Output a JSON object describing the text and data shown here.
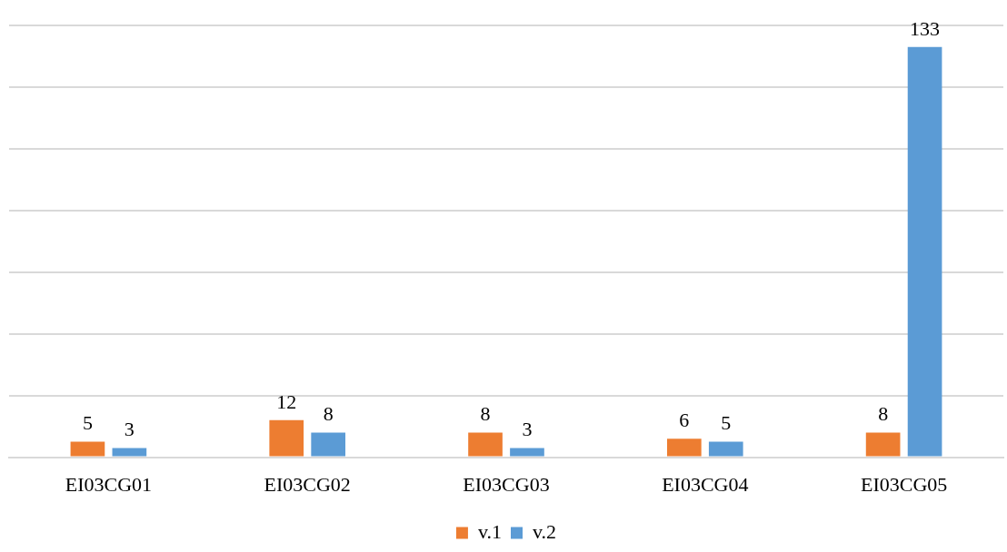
{
  "chart_data": {
    "type": "bar",
    "categories": [
      "EI03CG01",
      "EI03CG02",
      "EI03CG03",
      "EI03CG04",
      "EI03CG05"
    ],
    "series": [
      {
        "name": "v.1",
        "color": "#ed7d31",
        "values": [
          5,
          12,
          8,
          6,
          8
        ]
      },
      {
        "name": "v.2",
        "color": "#5b9bd5",
        "values": [
          3,
          8,
          3,
          5,
          133
        ]
      }
    ],
    "ylim": [
      0,
      140
    ],
    "yticks": [
      {
        "value": 0,
        "label": null
      },
      {
        "value": 20,
        "label": null
      },
      {
        "value": 40,
        "label": null
      },
      {
        "value": 60,
        "label": null
      },
      {
        "value": 80,
        "label": null
      },
      {
        "value": 100,
        "label": null
      },
      {
        "value": 120,
        "label": null
      },
      {
        "value": 140,
        "label": null
      }
    ],
    "tick_labels": "x",
    "grid": "y",
    "legend": "bottom",
    "data_labels": true
  }
}
